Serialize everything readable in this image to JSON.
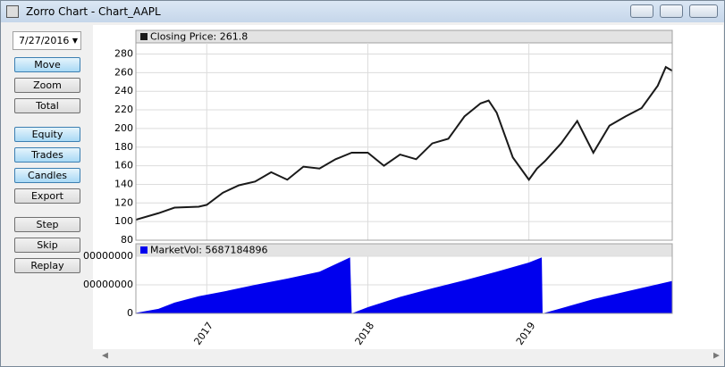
{
  "window": {
    "title": "Zorro Chart - Chart_AAPL"
  },
  "sidebar": {
    "date": "7/27/2016",
    "buttons": [
      "Move",
      "Zoom",
      "Total",
      "Equity",
      "Trades",
      "Candles",
      "Export",
      "Step",
      "Skip",
      "Replay"
    ],
    "active": [
      true,
      false,
      false,
      true,
      true,
      true,
      false,
      false,
      false,
      false
    ]
  },
  "chart_data": [
    {
      "type": "line",
      "x": [
        2016.56,
        2016.7,
        2016.8,
        2016.95,
        2017.0,
        2017.1,
        2017.2,
        2017.3,
        2017.4,
        2017.5,
        2017.6,
        2017.7,
        2017.8,
        2017.9,
        2018.0,
        2018.1,
        2018.2,
        2018.3,
        2018.4,
        2018.5,
        2018.6,
        2018.7,
        2018.75,
        2018.8,
        2018.9,
        2019.0,
        2019.05,
        2019.1,
        2019.2,
        2019.3,
        2019.4,
        2019.5,
        2019.6,
        2019.7,
        2019.8,
        2019.85,
        2019.89
      ],
      "series": [
        {
          "name": "Closing Price: 261.8",
          "color": "#1a1a1a",
          "values": [
            102,
            109,
            115,
            116,
            118,
            131,
            139,
            143,
            153,
            145,
            159,
            157,
            167,
            174,
            174,
            160,
            172,
            167,
            184,
            189,
            213,
            227,
            230,
            217,
            169,
            145,
            157,
            165,
            184,
            208,
            174,
            203,
            213,
            222,
            246,
            266,
            262
          ]
        }
      ],
      "xlim": [
        2016.56,
        2019.89
      ],
      "xticks": [
        2017,
        2018,
        2019
      ],
      "ylim": [
        80,
        292
      ],
      "yticks": [
        80,
        100,
        120,
        140,
        160,
        180,
        200,
        220,
        240,
        260,
        280
      ],
      "grid": true
    },
    {
      "type": "area",
      "x": [
        2016.56,
        2016.7,
        2016.8,
        2016.95,
        2017.1,
        2017.3,
        2017.5,
        2017.7,
        2017.89,
        2017.9,
        2018.0,
        2018.2,
        2018.4,
        2018.6,
        2018.8,
        2019.0,
        2019.08,
        2019.085,
        2019.2,
        2019.4,
        2019.6,
        2019.89
      ],
      "series": [
        {
          "name": "MarketVol: 5687184896",
          "color": "#0000ee",
          "values": [
            100000000,
            800000000,
            1900000000,
            3000000000,
            3800000000,
            5000000000,
            6100000000,
            7300000000,
            9800000000,
            0,
            1100000000,
            2900000000,
            4400000000,
            5800000000,
            7300000000,
            8900000000,
            9800000000,
            0,
            900000000,
            2500000000,
            3800000000,
            5687184896
          ]
        }
      ],
      "xlim": [
        2016.56,
        2019.89
      ],
      "xticks": [
        2017,
        2018,
        2019
      ],
      "ylim": [
        0,
        10000000000
      ],
      "yticks": [
        0,
        {
          "value": 5000000000,
          "label": "00000000"
        },
        {
          "value": 10000000000,
          "label": "00000000"
        }
      ],
      "grid": true
    }
  ]
}
